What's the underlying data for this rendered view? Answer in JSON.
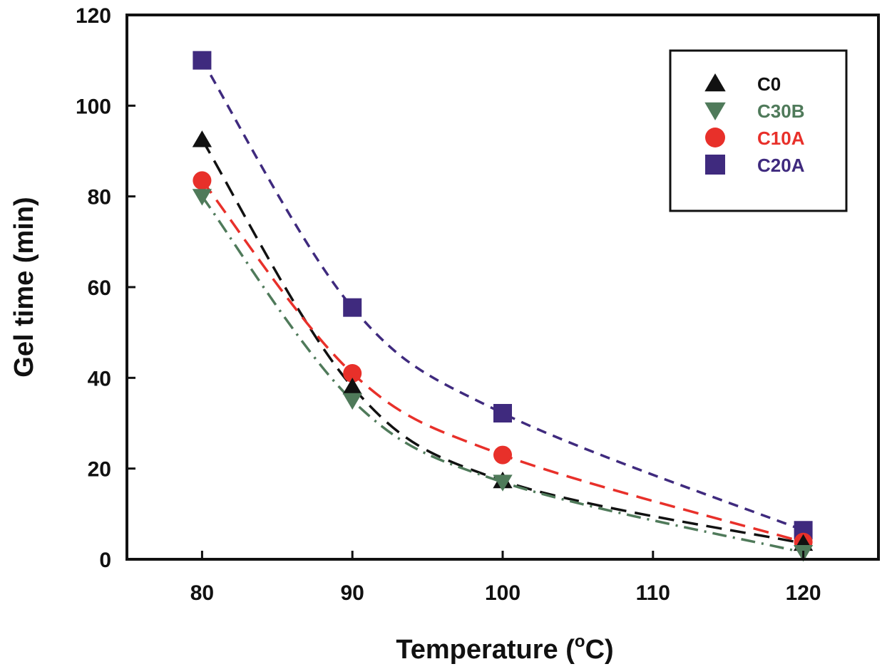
{
  "chart_data": {
    "type": "line",
    "title": "",
    "xlabel": "Temperature (",
    "xlabel_super": "o",
    "xlabel_tail": "C)",
    "ylabel": "Gel time (min)",
    "xlim": [
      75,
      125
    ],
    "ylim": [
      0,
      120
    ],
    "xticks": [
      80,
      90,
      100,
      110,
      120
    ],
    "yticks": [
      0,
      20,
      40,
      60,
      80,
      100,
      120
    ],
    "grid": false,
    "legend_position": "top-right",
    "x": [
      80,
      90,
      100,
      120
    ],
    "series": [
      {
        "name": "C0",
        "color": "#111111",
        "marker": "triangle-up",
        "line_style": "long-dash",
        "values": [
          92.5,
          38,
          17.3,
          3.5
        ]
      },
      {
        "name": "C30B",
        "color": "#4f7a5a",
        "marker": "triangle-down",
        "line_style": "dash-dot",
        "values": [
          80,
          35,
          17,
          1.5
        ]
      },
      {
        "name": "C10A",
        "color": "#e8302a",
        "marker": "circle",
        "line_style": "long-dash",
        "values": [
          83.5,
          41,
          23,
          3.8
        ]
      },
      {
        "name": "C20A",
        "color": "#3f2a7e",
        "marker": "square",
        "line_style": "dash",
        "values": [
          110,
          55.5,
          32.2,
          6.4
        ]
      }
    ]
  }
}
